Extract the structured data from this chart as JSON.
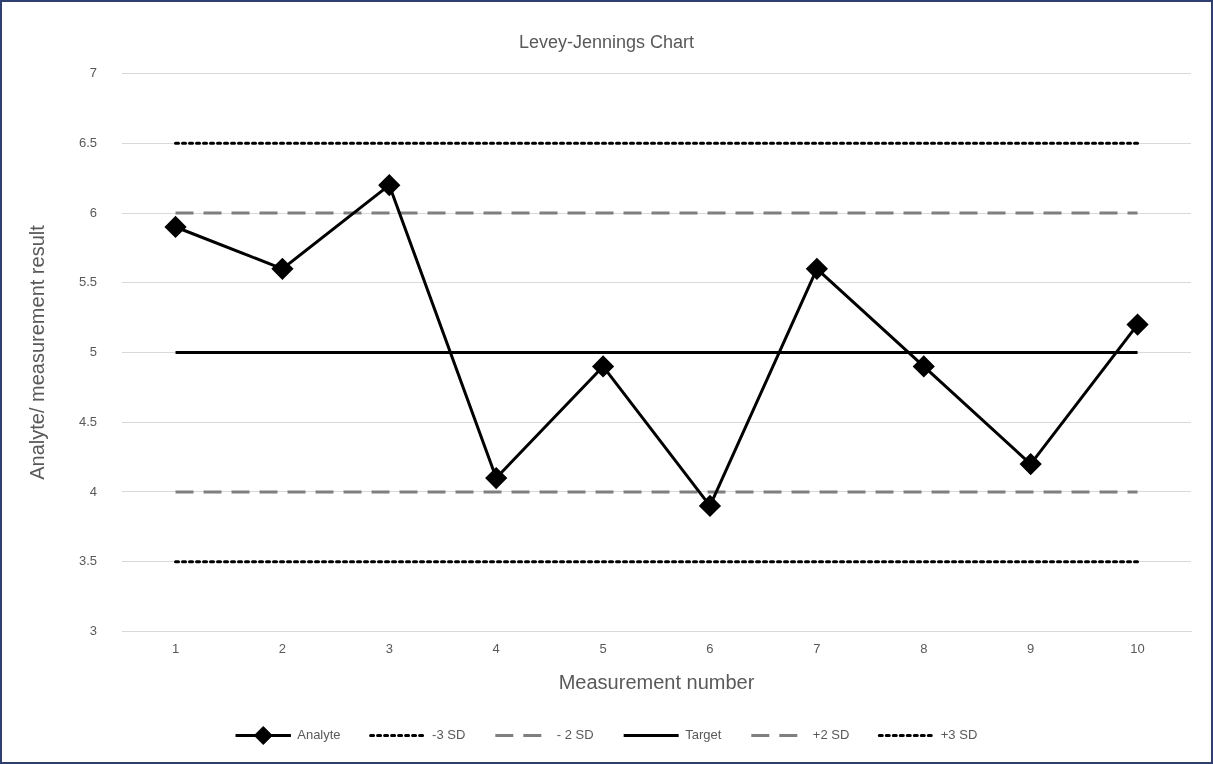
{
  "chart_data": {
    "type": "line",
    "title": "Levey-Jennings Chart",
    "xlabel": "Measurement number",
    "ylabel": "Analyte/ measurement result",
    "categories": [
      "1",
      "2",
      "3",
      "4",
      "5",
      "6",
      "7",
      "8",
      "9",
      "10"
    ],
    "series": [
      {
        "name": "Analyte",
        "color": "#000000",
        "marker": "diamond",
        "line_style": "solid",
        "values": [
          5.9,
          5.6,
          6.2,
          4.1,
          4.9,
          3.9,
          5.6,
          4.9,
          4.2,
          5.2
        ]
      },
      {
        "name": "-3 SD",
        "color": "#000000",
        "marker": "none",
        "line_style": "dotted",
        "values": [
          3.5,
          3.5,
          3.5,
          3.5,
          3.5,
          3.5,
          3.5,
          3.5,
          3.5,
          3.5
        ]
      },
      {
        "name": "- 2 SD",
        "color": "#7f7f7f",
        "marker": "none",
        "line_style": "dashed",
        "values": [
          4,
          4,
          4,
          4,
          4,
          4,
          4,
          4,
          4,
          4
        ]
      },
      {
        "name": "Target",
        "color": "#000000",
        "marker": "none",
        "line_style": "solid",
        "values": [
          5,
          5,
          5,
          5,
          5,
          5,
          5,
          5,
          5,
          5
        ]
      },
      {
        "name": "+2 SD",
        "color": "#7f7f7f",
        "marker": "none",
        "line_style": "dashed",
        "values": [
          6,
          6,
          6,
          6,
          6,
          6,
          6,
          6,
          6,
          6
        ]
      },
      {
        "name": "+3 SD",
        "color": "#000000",
        "marker": "none",
        "line_style": "dotted",
        "values": [
          6.5,
          6.5,
          6.5,
          6.5,
          6.5,
          6.5,
          6.5,
          6.5,
          6.5,
          6.5
        ]
      }
    ],
    "ylim": [
      3,
      7
    ],
    "yticks": [
      3,
      3.5,
      4,
      4.5,
      5,
      5.5,
      6,
      6.5,
      7
    ],
    "grid": "y",
    "legend": "bottom"
  }
}
